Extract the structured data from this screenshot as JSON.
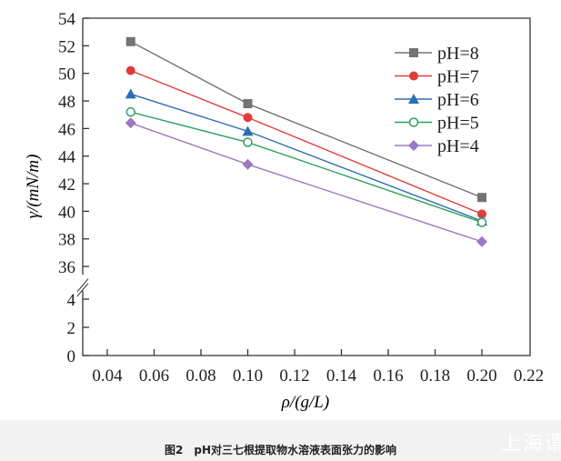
{
  "chart_data": {
    "type": "line",
    "title": "",
    "xlabel": "ρ/(g/L)",
    "ylabel": "γ/(mN/m)",
    "x": [
      0.05,
      0.1,
      0.2
    ],
    "xlim": [
      0.03,
      0.22
    ],
    "xticks": [
      "0.04",
      "0.06",
      "0.08",
      "0.10",
      "0.12",
      "0.14",
      "0.16",
      "0.18",
      "0.20",
      "0.22"
    ],
    "yticks_upper": [
      "36",
      "38",
      "40",
      "42",
      "44",
      "46",
      "48",
      "50",
      "52",
      "54"
    ],
    "yticks_lower": [
      "0",
      "2",
      "4"
    ],
    "ylim_upper": [
      35,
      54
    ],
    "ylim_lower": [
      0,
      5
    ],
    "axis_break": true,
    "grid": false,
    "legend_position": "top-right",
    "series": [
      {
        "name": "pH=8",
        "values": [
          52.3,
          47.8,
          41.0
        ],
        "color": "#737373",
        "marker": "square"
      },
      {
        "name": "pH=7",
        "values": [
          50.2,
          46.8,
          39.8
        ],
        "color": "#e03c3c",
        "marker": "circle"
      },
      {
        "name": "pH=6",
        "values": [
          48.5,
          45.8,
          39.3
        ],
        "color": "#2e6db4",
        "marker": "triangle"
      },
      {
        "name": "pH=5",
        "values": [
          47.2,
          45.0,
          39.2
        ],
        "color": "#2ea05a",
        "marker": "open-circle"
      },
      {
        "name": "pH=4",
        "values": [
          46.4,
          43.4,
          37.8
        ],
        "color": "#9b78c0",
        "marker": "diamond"
      }
    ]
  },
  "caption": "图2　pH对三七根提取物水溶液表面张力的影响",
  "watermark": "上海谓"
}
